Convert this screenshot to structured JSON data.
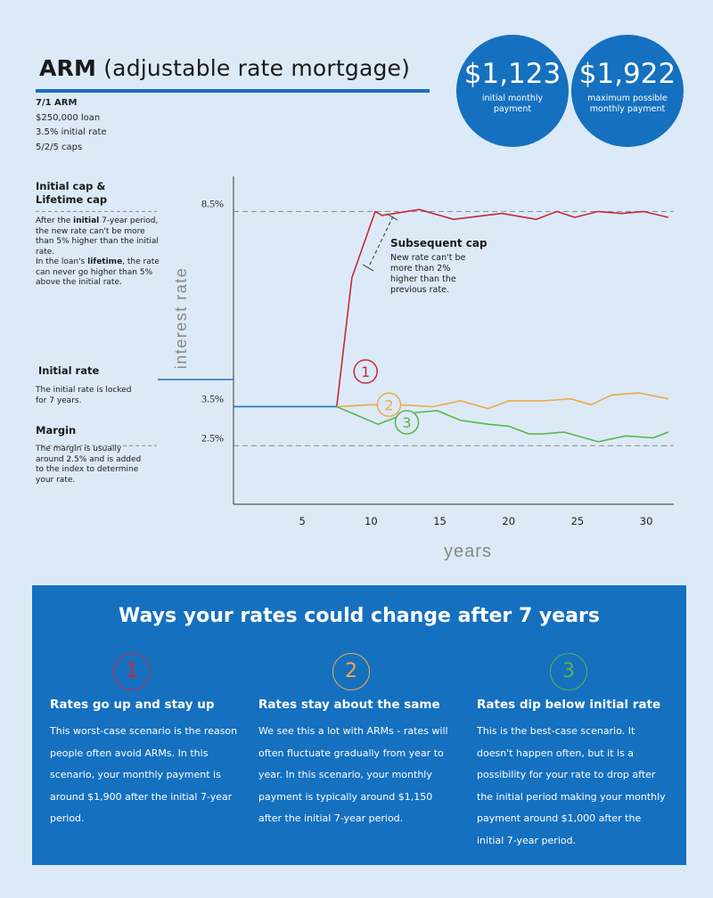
{
  "header": {
    "title_bold": "ARM",
    "title_rest": " (adjustable rate mortgage)",
    "loan_type": "7/1 ARM",
    "loan_amount": "$250,000 loan",
    "initial_rate": "3.5% initial rate",
    "caps": "5/2/5 caps"
  },
  "stats": [
    {
      "amount": "$1,123",
      "label": "initial monthly payment"
    },
    {
      "amount": "$1,922",
      "label": "maximum possible monthly payment"
    }
  ],
  "sidebar": {
    "cap_heading_1": "Initial cap &",
    "cap_heading_2": "Lifetime cap",
    "cap_text_a": "After the ",
    "cap_text_b": "initial",
    "cap_text_c": " 7-year period, the new rate can't be more than 5% higher than the initial rate.",
    "cap_text_d": "In the loan's ",
    "cap_text_e": "lifetime",
    "cap_text_f": ", the rate can never go higher than 5% above the initial rate.",
    "initial_heading": "Initial rate",
    "initial_text": "The initial rate is locked for 7 years.",
    "margin_heading": "Margin",
    "margin_text": "The margin is usually around 2.5% and is added to the index to determine your rate."
  },
  "annotations": {
    "subsequent_cap_heading": "Subsequent cap",
    "subsequent_cap_text": "New rate can't be more than 2% higher than the previous rate."
  },
  "chart_data": {
    "type": "line",
    "title": "",
    "xlabel": "years",
    "ylabel": "interest rate",
    "xlim": [
      0,
      32
    ],
    "x_ticks": [
      5,
      10,
      15,
      20,
      25,
      30
    ],
    "y_reference_lines": [
      {
        "label": "8.5%",
        "value": 8.5
      },
      {
        "label": "3.5%",
        "value": 3.5
      },
      {
        "label": "2.5%",
        "value": 2.5
      }
    ],
    "ylim": [
      1.0,
      9.4
    ],
    "base_line": {
      "name": "initial period",
      "x": [
        0,
        7.5
      ],
      "y": [
        3.5,
        3.5
      ],
      "color": "#2b6fb6"
    },
    "series": [
      {
        "name": "1",
        "color": "#c8283a",
        "x": [
          7.5,
          8.6,
          10.3,
          10.8,
          13.5,
          16,
          19.5,
          22,
          23.5,
          24.8,
          26.5,
          28.2,
          29.8,
          31.6
        ],
        "y": [
          3.5,
          6.8,
          8.5,
          8.4,
          8.55,
          8.3,
          8.45,
          8.3,
          8.5,
          8.35,
          8.5,
          8.45,
          8.5,
          8.35
        ]
      },
      {
        "name": "2",
        "color": "#f0a84a",
        "x": [
          7.5,
          10,
          12,
          14.5,
          16.5,
          18.5,
          20,
          22.5,
          24.5,
          26,
          27.5,
          29.5,
          31.6
        ],
        "y": [
          3.5,
          3.55,
          3.55,
          3.5,
          3.65,
          3.45,
          3.65,
          3.65,
          3.7,
          3.55,
          3.8,
          3.85,
          3.7
        ]
      },
      {
        "name": "3",
        "color": "#5ab548",
        "x": [
          7.5,
          10.5,
          12,
          13.3,
          14.8,
          16.5,
          18.5,
          20,
          21.5,
          22.5,
          24,
          25.5,
          26.5,
          28.5,
          30.5,
          31.6
        ],
        "y": [
          3.5,
          3.05,
          3.25,
          3.35,
          3.4,
          3.15,
          3.05,
          3.0,
          2.8,
          2.8,
          2.85,
          2.7,
          2.6,
          2.75,
          2.7,
          2.85
        ]
      }
    ]
  },
  "panel": {
    "title": "Ways your rates could change after 7 years",
    "scenarios": [
      {
        "number": "1",
        "color": "#c8283a",
        "heading": "Rates go up and stay up",
        "text": "This worst-case scenario is the reason people often avoid ARMs. In this scenario, your monthly payment is around $1,900 after the initial 7-year period."
      },
      {
        "number": "2",
        "color": "#f0a84a",
        "heading": "Rates stay about the same",
        "text": "We see this a lot with ARMs - rates will often fluctuate gradually from year to year. In this scenario, your monthly payment is typically around $1,150 after the initial 7-year period."
      },
      {
        "number": "3",
        "color": "#5ab548",
        "heading": "Rates dip below initial rate",
        "text": "This is the best-case scenario. It doesn't happen often, but it is a possibility for your rate to drop after the initial period making your monthly payment around $1,000 after the initial 7-year period."
      }
    ]
  }
}
